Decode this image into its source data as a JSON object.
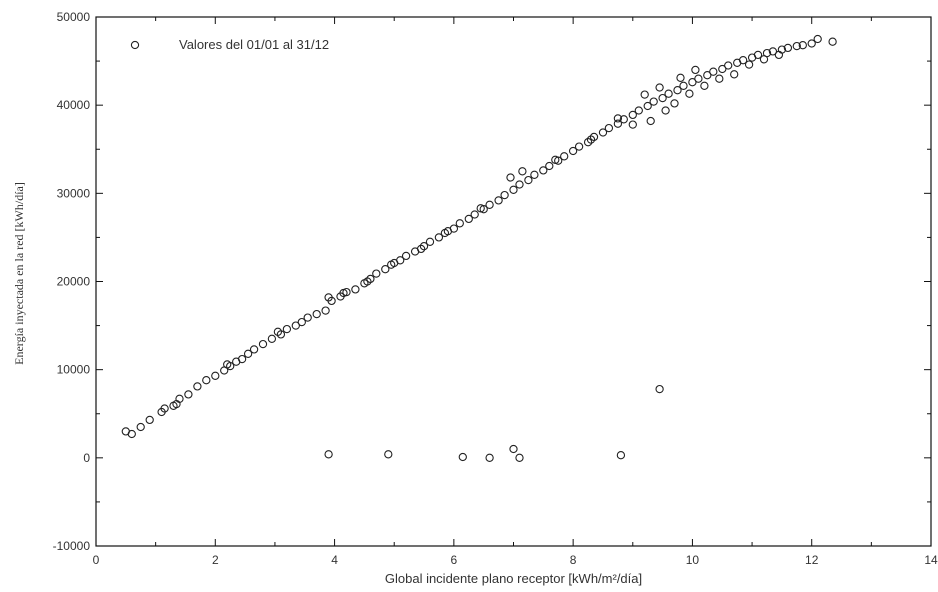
{
  "chart_data": {
    "type": "scatter",
    "title": "",
    "xlabel": "Global incidente plano receptor [kWh/m²/día]",
    "ylabel": "Energía inyectada en la red [kWh/día]",
    "xlim": [
      0,
      14
    ],
    "ylim": [
      -10000,
      50000
    ],
    "x_ticks": [
      "0",
      "2",
      "4",
      "6",
      "8",
      "10",
      "12",
      "14"
    ],
    "y_ticks": [
      "-10000",
      "0",
      "10000",
      "20000",
      "30000",
      "40000",
      "50000"
    ],
    "grid": false,
    "legend_position": "top-left",
    "marker": "open-circle",
    "color": "#222222",
    "series": [
      {
        "name": "Valores del 01/01 al 31/12",
        "points": [
          [
            0.6,
            2700
          ],
          [
            0.75,
            3500
          ],
          [
            0.9,
            4300
          ],
          [
            1.1,
            5200
          ],
          [
            1.15,
            5600
          ],
          [
            1.35,
            6100
          ],
          [
            1.4,
            6700
          ],
          [
            1.55,
            7200
          ],
          [
            1.7,
            8100
          ],
          [
            1.85,
            8800
          ],
          [
            2.0,
            9300
          ],
          [
            2.15,
            9900
          ],
          [
            2.25,
            10400
          ],
          [
            2.35,
            10900
          ],
          [
            2.45,
            11200
          ],
          [
            2.55,
            11800
          ],
          [
            2.65,
            12300
          ],
          [
            2.8,
            12900
          ],
          [
            2.95,
            13500
          ],
          [
            3.1,
            14000
          ],
          [
            3.2,
            14600
          ],
          [
            3.35,
            15000
          ],
          [
            3.45,
            15400
          ],
          [
            3.55,
            15900
          ],
          [
            3.7,
            16300
          ],
          [
            3.85,
            16700
          ],
          [
            3.95,
            17800
          ],
          [
            4.1,
            18300
          ],
          [
            4.2,
            18800
          ],
          [
            4.35,
            19100
          ],
          [
            4.5,
            19800
          ],
          [
            4.6,
            20300
          ],
          [
            4.7,
            20900
          ],
          [
            4.85,
            21400
          ],
          [
            4.95,
            21900
          ],
          [
            5.1,
            22400
          ],
          [
            5.2,
            22900
          ],
          [
            5.35,
            23400
          ],
          [
            5.5,
            24000
          ],
          [
            5.6,
            24500
          ],
          [
            5.75,
            25000
          ],
          [
            5.85,
            25500
          ],
          [
            6.0,
            26000
          ],
          [
            6.1,
            26600
          ],
          [
            6.25,
            27100
          ],
          [
            6.35,
            27600
          ],
          [
            6.5,
            28200
          ],
          [
            6.6,
            28700
          ],
          [
            6.75,
            29200
          ],
          [
            6.85,
            29800
          ],
          [
            7.0,
            30400
          ],
          [
            7.1,
            31000
          ],
          [
            7.25,
            31500
          ],
          [
            7.35,
            32100
          ],
          [
            7.5,
            32600
          ],
          [
            7.6,
            33100
          ],
          [
            7.75,
            33700
          ],
          [
            7.85,
            34200
          ],
          [
            8.0,
            34800
          ],
          [
            8.1,
            35300
          ],
          [
            8.25,
            35800
          ],
          [
            8.35,
            36400
          ],
          [
            8.5,
            36900
          ],
          [
            8.6,
            37400
          ],
          [
            8.75,
            37900
          ],
          [
            8.85,
            38400
          ],
          [
            9.0,
            38900
          ],
          [
            9.1,
            39400
          ],
          [
            9.25,
            39900
          ],
          [
            9.35,
            40400
          ],
          [
            9.5,
            40800
          ],
          [
            9.6,
            41300
          ],
          [
            9.75,
            41700
          ],
          [
            9.85,
            42200
          ],
          [
            10.0,
            42600
          ],
          [
            10.1,
            43000
          ],
          [
            10.25,
            43400
          ],
          [
            10.35,
            43800
          ],
          [
            10.5,
            44100
          ],
          [
            10.6,
            44500
          ],
          [
            10.75,
            44800
          ],
          [
            10.85,
            45100
          ],
          [
            11.0,
            45400
          ],
          [
            11.1,
            45700
          ],
          [
            11.25,
            45900
          ],
          [
            11.35,
            46100
          ],
          [
            11.5,
            46300
          ],
          [
            11.6,
            46500
          ],
          [
            11.75,
            46700
          ],
          [
            11.85,
            46800
          ],
          [
            12.0,
            47000
          ],
          [
            12.1,
            47500
          ],
          [
            12.35,
            47200
          ],
          [
            0.5,
            3000
          ],
          [
            1.3,
            5900
          ],
          [
            2.2,
            10600
          ],
          [
            3.05,
            14300
          ],
          [
            3.9,
            18200
          ],
          [
            4.15,
            18700
          ],
          [
            4.55,
            20000
          ],
          [
            5.0,
            22100
          ],
          [
            5.45,
            23700
          ],
          [
            5.9,
            25700
          ],
          [
            6.45,
            28300
          ],
          [
            6.95,
            31800
          ],
          [
            7.15,
            32500
          ],
          [
            7.7,
            33800
          ],
          [
            8.3,
            36100
          ],
          [
            8.75,
            38500
          ],
          [
            9.0,
            37800
          ],
          [
            9.3,
            38200
          ],
          [
            9.55,
            39400
          ],
          [
            9.7,
            40200
          ],
          [
            9.95,
            41300
          ],
          [
            10.2,
            42200
          ],
          [
            10.45,
            43000
          ],
          [
            10.7,
            43500
          ],
          [
            10.95,
            44600
          ],
          [
            11.2,
            45200
          ],
          [
            11.45,
            45700
          ],
          [
            9.2,
            41200
          ],
          [
            9.45,
            42000
          ],
          [
            9.8,
            43100
          ],
          [
            10.05,
            44000
          ],
          [
            3.9,
            400
          ],
          [
            4.9,
            400
          ],
          [
            6.15,
            100
          ],
          [
            6.6,
            0
          ],
          [
            7.0,
            1000
          ],
          [
            7.1,
            0
          ],
          [
            8.8,
            300
          ],
          [
            9.45,
            7800
          ]
        ]
      }
    ]
  }
}
